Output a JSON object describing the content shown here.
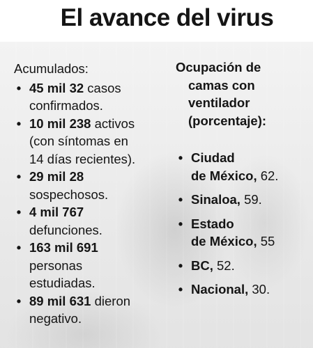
{
  "title": "El avance del virus",
  "left": {
    "heading": "Acumulados:",
    "items": [
      {
        "strong": "45 mil 32",
        "rest_lines": [
          " casos",
          "confirmados."
        ]
      },
      {
        "strong": "10 mil 238",
        "rest_lines": [
          " activos",
          "(con síntomas en",
          "14 días recientes)."
        ]
      },
      {
        "strong": "29 mil 28",
        "rest_lines": [
          "",
          "sospechosos."
        ]
      },
      {
        "strong": "4 mil 767",
        "rest_lines": [
          "",
          "defunciones."
        ]
      },
      {
        "strong": "163 mil 691",
        "rest_lines": [
          "",
          "personas",
          "estudiadas."
        ]
      },
      {
        "strong": "89 mil 631",
        "rest_lines": [
          " dieron",
          "negativo."
        ]
      }
    ]
  },
  "right": {
    "heading_lines": [
      "Ocupación de",
      "camas con",
      "ventilador",
      "(porcentaje):"
    ],
    "items": [
      {
        "line1": "Ciudad",
        "line2_strong": "de México,",
        "value": " 62."
      },
      {
        "line1": "",
        "line2_strong": "Sinaloa,",
        "value": " 59."
      },
      {
        "line1": "Estado",
        "line2_strong": "de México,",
        "value": " 55"
      },
      {
        "line1": "",
        "line2_strong": "BC,",
        "value": " 52."
      },
      {
        "line1": "",
        "line2_strong": "Nacional,",
        "value": " 30."
      }
    ]
  },
  "bullet_glyph": "•"
}
